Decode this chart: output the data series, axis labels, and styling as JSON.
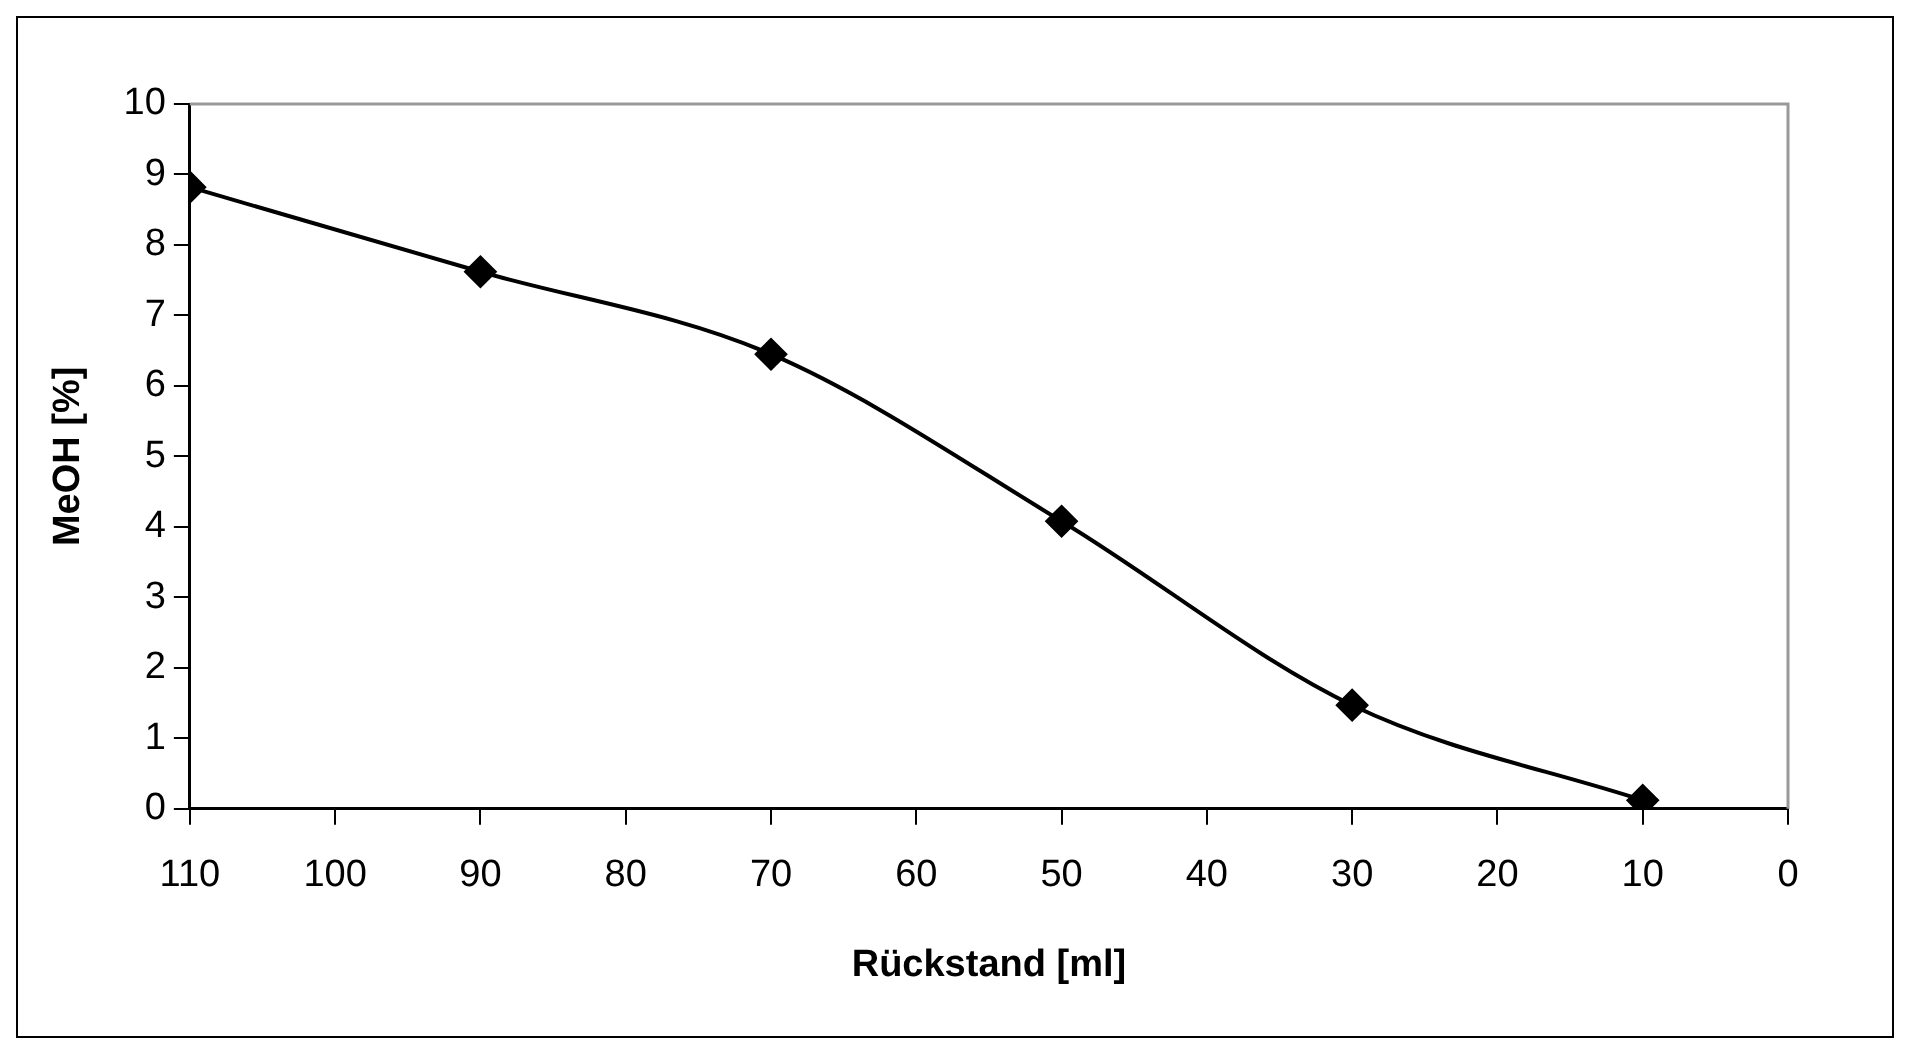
{
  "chart_data": {
    "type": "line",
    "xlabel": "Rückstand [ml]",
    "ylabel": "MeOH [%]",
    "x": [
      110,
      90,
      70,
      50,
      30,
      10
    ],
    "series": [
      {
        "color": "#000000",
        "values": [
          8.82,
          7.62,
          6.45,
          4.08,
          1.47,
          0.12
        ]
      }
    ],
    "xlim": [
      110,
      0
    ],
    "xticks": [
      110,
      100,
      90,
      80,
      70,
      60,
      50,
      40,
      30,
      20,
      10,
      0
    ],
    "ylim": [
      0,
      10
    ],
    "yticks": [
      0,
      1,
      2,
      3,
      4,
      5,
      6,
      7,
      8,
      9,
      10
    ],
    "grid": false,
    "legend": false,
    "marker": "diamond",
    "line_style": "solid"
  }
}
